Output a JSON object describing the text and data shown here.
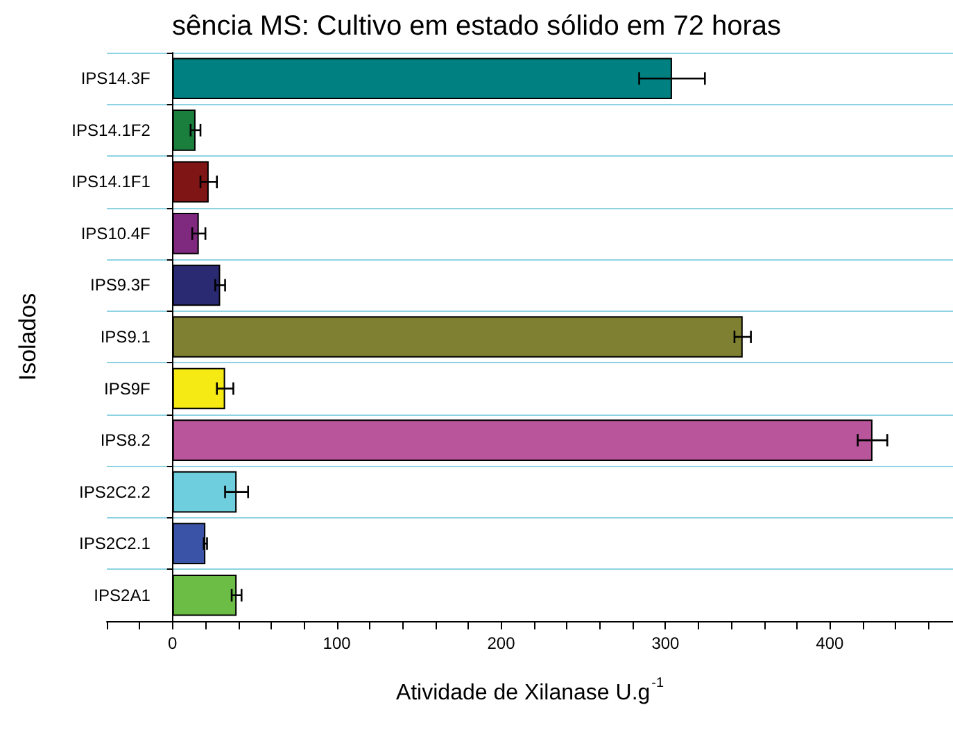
{
  "chart_data": {
    "type": "bar",
    "orientation": "horizontal",
    "title": "sência MS: Cultivo em estado sólido em 72 horas",
    "xlabel": "Atividade de Xilanase U.g$^{-1}$",
    "ylabel": "Isolados",
    "categories": [
      "IPS14.3F",
      "IPS14.1F2",
      "IPS14.1F1",
      "IPS10.4F",
      "IPS9.3F",
      "IPS9.1",
      "IPS9F",
      "IPS8.2",
      "IPS2C2.2",
      "IPS2C2.1",
      "IPS2A1"
    ],
    "values": [
      304,
      14,
      22,
      16,
      29,
      347,
      32,
      426,
      39,
      20,
      39
    ],
    "errors": [
      20,
      3,
      5,
      4,
      3,
      5,
      5,
      9,
      7,
      1,
      3
    ],
    "colors": [
      "#008080",
      "#1a7f3c",
      "#7f1515",
      "#7f2a7f",
      "#2a2a72",
      "#808033",
      "#f5ea14",
      "#b8559b",
      "#6ecedd",
      "#3a53a6",
      "#6bbd45"
    ],
    "xlim": [
      -40,
      475
    ],
    "xticks": [
      {
        "value": -40,
        "label": null
      },
      {
        "value": -20,
        "label": null
      },
      0,
      {
        "value": 20,
        "label": null
      },
      {
        "value": 40,
        "label": null
      },
      {
        "value": 60,
        "label": null
      },
      {
        "value": 80,
        "label": null
      },
      100,
      {
        "value": 120,
        "label": null
      },
      {
        "value": 140,
        "label": null
      },
      {
        "value": 160,
        "label": null
      },
      {
        "value": 180,
        "label": null
      },
      200,
      {
        "value": 220,
        "label": null
      },
      {
        "value": 240,
        "label": null
      },
      {
        "value": 260,
        "label": null
      },
      {
        "value": 280,
        "label": null
      },
      300,
      {
        "value": 320,
        "label": null
      },
      {
        "value": 340,
        "label": null
      },
      {
        "value": 360,
        "label": null
      },
      {
        "value": 380,
        "label": null
      },
      400,
      {
        "value": 420,
        "label": null
      },
      {
        "value": 440,
        "label": null
      },
      {
        "value": 460,
        "label": null
      }
    ],
    "grid": "y"
  }
}
